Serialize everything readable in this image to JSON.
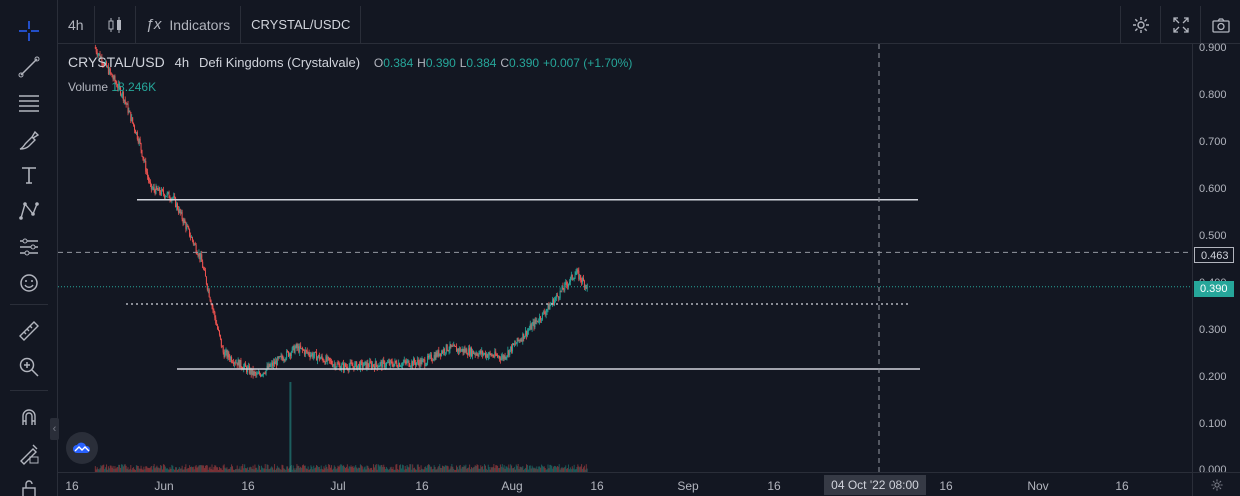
{
  "colors": {
    "bg": "#131722",
    "up": "#26a69a",
    "down": "#ef5350",
    "grid": "#2a2e39",
    "text": "#b2b5be",
    "drawing": "#d1d4dc",
    "last_price": "#26a69a"
  },
  "toolbar": {
    "interval": "4h",
    "indicators_label": "Indicators",
    "symbol": "CRYSTAL/USDC"
  },
  "left_tools": [
    "crosshair-icon",
    "trend-line-icon",
    "fib-icon",
    "brush-icon",
    "text-icon",
    "pattern-icon",
    "prediction-icon",
    "emoji-icon",
    "ruler-icon",
    "zoom-in-icon",
    "magnet-icon",
    "lock-drawing-icon",
    "lock-icon"
  ],
  "legend": {
    "symbol": "CRYSTAL/USD",
    "interval": "4h",
    "exchange": "Defi Kingdoms (Crystalvale)",
    "o_label": "O",
    "o": "0.384",
    "h_label": "H",
    "h": "0.390",
    "l_label": "L",
    "l": "0.384",
    "c_label": "C",
    "c": "0.390",
    "change": "+0.007 (+1.70%)",
    "volume_label": "Volume",
    "volume": "18.246K"
  },
  "price_axis": {
    "labels": [
      "0.900",
      "0.800",
      "0.700",
      "0.600",
      "0.500",
      "0.400",
      "0.300",
      "0.200",
      "0.100",
      "0.000"
    ],
    "crosshair_price": "0.463",
    "last_price": "0.390"
  },
  "time_axis": {
    "labels": [
      "16",
      "Jun",
      "16",
      "Jul",
      "16",
      "Aug",
      "16",
      "Sep",
      "16",
      "16",
      "Nov",
      "16"
    ],
    "crosshair_time": "04 Oct '22   08:00"
  },
  "chart_data": {
    "type": "candlestick",
    "symbol": "CRYSTAL/USD",
    "interval": "4h",
    "ylim": [
      0,
      0.9
    ],
    "key_points": [
      {
        "x": "May 20",
        "y": 0.9
      },
      {
        "x": "May 25",
        "y": 0.8
      },
      {
        "x": "May 28",
        "y": 0.7
      },
      {
        "x": "May 30",
        "y": 0.6
      },
      {
        "x": "Jun 3",
        "y": 0.58
      },
      {
        "x": "Jun 8",
        "y": 0.45
      },
      {
        "x": "Jun 12",
        "y": 0.25
      },
      {
        "x": "Jun 18",
        "y": 0.2
      },
      {
        "x": "Jun 25",
        "y": 0.26
      },
      {
        "x": "Jul 3",
        "y": 0.22
      },
      {
        "x": "Jul 18",
        "y": 0.23
      },
      {
        "x": "Jul 22",
        "y": 0.26
      },
      {
        "x": "Aug 1",
        "y": 0.24
      },
      {
        "x": "Aug 8",
        "y": 0.33
      },
      {
        "x": "Aug 14",
        "y": 0.42
      },
      {
        "x": "Aug 16",
        "y": 0.39
      }
    ],
    "horizontal_lines": [
      0.575,
      0.4,
      0.215
    ],
    "crosshair": {
      "price": 0.463,
      "time": "04 Oct '22 08:00"
    }
  }
}
